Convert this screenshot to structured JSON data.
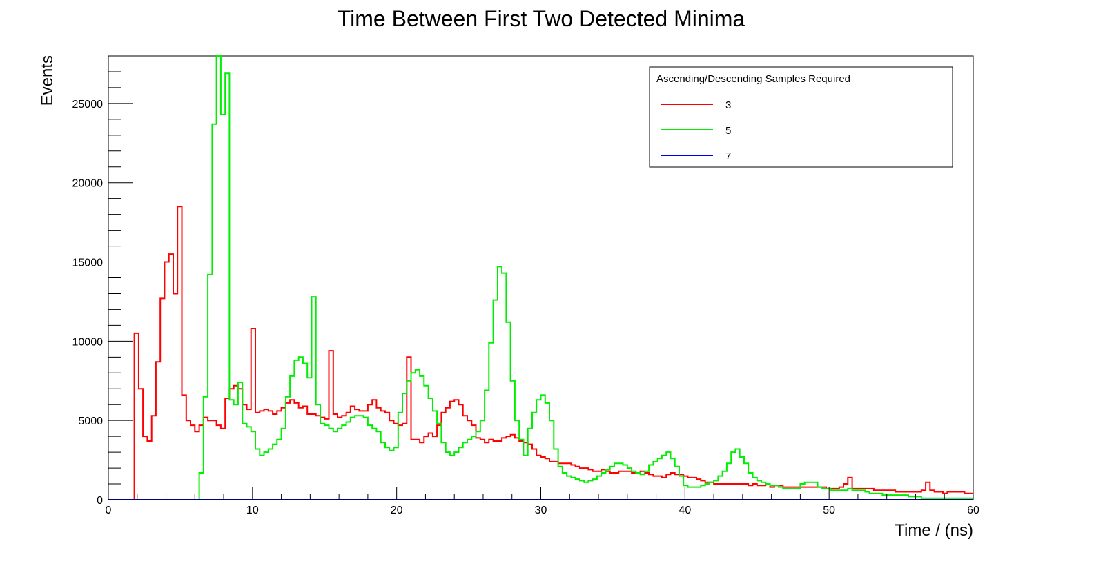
{
  "chart_data": {
    "type": "line",
    "title": "Time Between First Two Detected Minima",
    "xlabel": "Time / (ns)",
    "ylabel": "Events",
    "xlim": [
      0,
      60
    ],
    "ylim": [
      0,
      28000
    ],
    "x_ticks": [
      0,
      10,
      20,
      30,
      40,
      50,
      60
    ],
    "x_tick_labels": [
      "0",
      "10",
      "20",
      "30",
      "40",
      "50",
      "60"
    ],
    "y_ticks": [
      0,
      5000,
      10000,
      15000,
      20000,
      25000
    ],
    "y_tick_labels": [
      "0",
      "5000",
      "10000",
      "15000",
      "20000",
      "25000"
    ],
    "grid": false,
    "legend": {
      "title": "Ascending/Descending Samples Required",
      "position": "top-right"
    },
    "bin_width": 0.3,
    "x_start": 0,
    "series": [
      {
        "name": "3",
        "color": "#ff0000",
        "values": [
          0,
          0,
          0,
          0,
          0,
          0,
          10500,
          7000,
          4000,
          3700,
          5300,
          8700,
          12700,
          15000,
          15500,
          13000,
          18500,
          6600,
          5000,
          4700,
          4300,
          4700,
          5200,
          5000,
          5000,
          4700,
          4500,
          6400,
          7000,
          7200,
          7000,
          6000,
          5700,
          10800,
          5500,
          5600,
          5700,
          5600,
          5400,
          5600,
          5800,
          6100,
          6300,
          6100,
          5800,
          5900,
          5400,
          5400,
          5300,
          5200,
          5100,
          9400,
          5400,
          5200,
          5300,
          5500,
          5900,
          5700,
          5600,
          5600,
          6000,
          6300,
          5800,
          5600,
          5500,
          5000,
          4800,
          4700,
          4800,
          9000,
          3800,
          3800,
          3600,
          4000,
          4200,
          4000,
          4700,
          5500,
          5800,
          6200,
          6300,
          6000,
          5300,
          5000,
          4700,
          3900,
          3800,
          3600,
          3800,
          3700,
          3700,
          3900,
          4000,
          4100,
          3900,
          3700,
          3600,
          3500,
          3200,
          2800,
          2700,
          2600,
          2400,
          2400,
          2300,
          2300,
          2300,
          2200,
          2100,
          2000,
          2000,
          1900,
          1800,
          1800,
          1900,
          1800,
          1700,
          1700,
          1800,
          1800,
          1800,
          1700,
          1700,
          1800,
          1700,
          1600,
          1500,
          1500,
          1400,
          1600,
          1700,
          1600,
          1600,
          1500,
          1400,
          1400,
          1300,
          1200,
          1100,
          1100,
          1000,
          1000,
          1000,
          1000,
          1000,
          1000,
          1000,
          1000,
          900,
          1000,
          900,
          900,
          1000,
          800,
          900,
          900,
          800,
          800,
          800,
          800,
          800,
          800,
          800,
          800,
          800,
          800,
          700,
          700,
          700,
          800,
          1000,
          1400,
          700,
          700,
          700,
          700,
          700,
          600,
          600,
          600,
          600,
          600,
          500,
          500,
          500,
          500,
          500,
          500,
          600,
          1100,
          600,
          500,
          500,
          400,
          500,
          500,
          500,
          500,
          400,
          400,
          400,
          400,
          400,
          400,
          400,
          400,
          400,
          400
        ]
      },
      {
        "name": "5",
        "color": "#00ee00",
        "values": [
          0,
          0,
          0,
          0,
          0,
          0,
          0,
          0,
          0,
          0,
          0,
          0,
          0,
          0,
          0,
          0,
          0,
          0,
          0,
          0,
          0,
          1700,
          6500,
          14200,
          23700,
          28000,
          24300,
          26900,
          6300,
          6000,
          7400,
          4800,
          4600,
          4300,
          3200,
          2800,
          3000,
          3200,
          3500,
          3800,
          4500,
          6500,
          7800,
          8800,
          9000,
          8600,
          7700,
          12800,
          6000,
          4800,
          4700,
          4500,
          4300,
          4500,
          4700,
          4900,
          5200,
          5300,
          5300,
          5200,
          4700,
          4500,
          4300,
          3600,
          3300,
          3100,
          3300,
          5500,
          6700,
          7500,
          8000,
          8200,
          7800,
          7200,
          6400,
          5600,
          4800,
          3600,
          3000,
          2800,
          3000,
          3300,
          3600,
          3800,
          4000,
          4300,
          5000,
          6900,
          9900,
          12600,
          14700,
          14300,
          11200,
          7500,
          5000,
          3800,
          2800,
          4500,
          5500,
          6300,
          6600,
          6100,
          5000,
          3200,
          2100,
          1700,
          1500,
          1400,
          1300,
          1200,
          1100,
          1200,
          1300,
          1500,
          1700,
          1900,
          2100,
          2300,
          2300,
          2200,
          2000,
          1800,
          1700,
          1600,
          1800,
          2200,
          2400,
          2600,
          2800,
          3000,
          2600,
          2100,
          1500,
          900,
          800,
          800,
          800,
          900,
          1000,
          1100,
          1200,
          1500,
          1800,
          2300,
          3000,
          3200,
          2700,
          2300,
          1700,
          1400,
          1200,
          1100,
          1000,
          900,
          900,
          800,
          700,
          700,
          700,
          700,
          1000,
          1100,
          1100,
          1100,
          800,
          700,
          700,
          600,
          600,
          600,
          600,
          700,
          600,
          600,
          600,
          500,
          400,
          400,
          400,
          300,
          300,
          300,
          300,
          300,
          300,
          200,
          200,
          200,
          100,
          100,
          100,
          100,
          100,
          100,
          100,
          100,
          100,
          100,
          100,
          100,
          100,
          100,
          100,
          100,
          100,
          100,
          100,
          0,
          0,
          0,
          0,
          0,
          0,
          0,
          0,
          0,
          0,
          0,
          0,
          0,
          0,
          0
        ]
      },
      {
        "name": "7",
        "color": "#0000ee",
        "values": [
          0,
          0,
          0,
          0,
          0,
          0,
          0,
          0,
          0,
          0,
          0,
          0,
          0,
          0,
          0,
          0,
          0,
          0,
          0,
          0,
          0,
          0,
          0,
          0,
          0,
          0,
          0,
          0,
          0,
          0,
          0,
          0,
          0,
          0,
          0,
          0,
          0,
          0,
          0,
          0,
          0,
          0,
          0,
          0,
          0,
          0,
          0,
          0,
          0,
          0,
          0,
          0,
          0,
          0,
          0,
          0,
          0,
          0,
          0,
          0,
          0,
          0,
          0,
          0,
          0,
          0,
          0,
          0,
          0,
          0,
          0,
          0,
          0,
          0,
          0,
          0,
          0,
          0,
          0,
          0,
          0,
          0,
          0,
          0,
          0,
          0,
          0,
          0,
          0,
          0,
          0,
          0,
          0,
          0,
          0,
          0,
          0,
          0,
          0,
          0,
          0,
          0,
          0,
          0,
          0,
          0,
          0,
          0,
          0,
          0,
          0,
          0,
          0,
          0,
          0,
          0,
          0,
          0,
          0,
          0,
          0,
          0,
          0,
          0,
          0,
          0,
          0,
          0,
          0,
          0,
          0,
          0,
          0,
          0,
          0,
          0,
          0,
          0,
          0,
          0,
          0,
          0,
          0,
          0,
          0,
          0,
          0,
          0,
          0,
          0,
          0,
          0,
          0,
          0,
          0,
          0,
          0,
          0,
          0,
          0,
          0,
          0,
          0,
          0,
          0,
          0,
          0,
          0,
          0,
          0,
          0,
          0,
          0,
          0,
          0,
          0,
          0,
          0,
          0,
          0,
          0,
          0,
          0,
          0,
          0,
          0,
          0,
          0,
          0,
          0,
          0,
          0,
          0,
          0,
          0,
          0,
          0,
          0,
          0,
          0,
          0,
          0,
          0,
          0,
          0,
          0,
          0,
          0,
          0,
          0,
          0,
          0,
          0,
          0,
          0,
          0,
          0,
          0,
          0,
          0,
          0
        ]
      }
    ]
  }
}
